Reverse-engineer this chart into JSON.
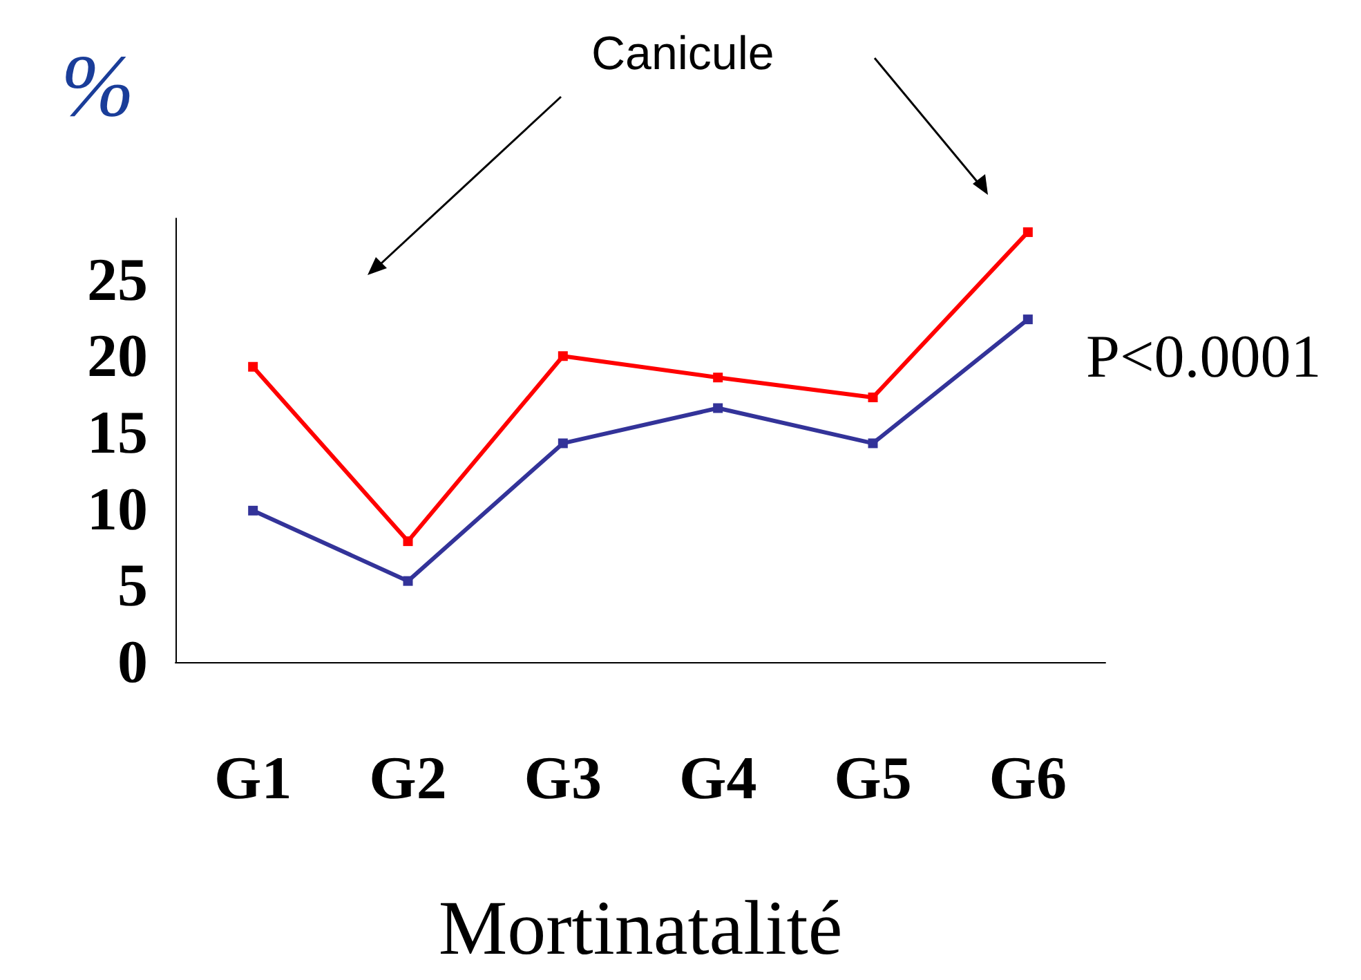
{
  "chart_data": {
    "type": "line",
    "ylabel": "%",
    "xlabel": "Mortinatalité",
    "categories": [
      "G1",
      "G2",
      "G3",
      "G4",
      "G5",
      "G6"
    ],
    "series": [
      {
        "color": "#ff0000",
        "values": [
          19.3,
          7.9,
          20.0,
          18.6,
          17.3,
          28.1
        ]
      },
      {
        "color": "#333399",
        "values": [
          9.9,
          5.3,
          14.3,
          16.6,
          14.3,
          22.4
        ]
      }
    ],
    "ylim": [
      0,
      29
    ],
    "yticks": [
      0,
      5,
      10,
      15,
      20,
      25
    ],
    "marker": "square",
    "line_style": "solid",
    "grid": false,
    "annotations": [
      "Canicule",
      "P<0.0001"
    ]
  }
}
